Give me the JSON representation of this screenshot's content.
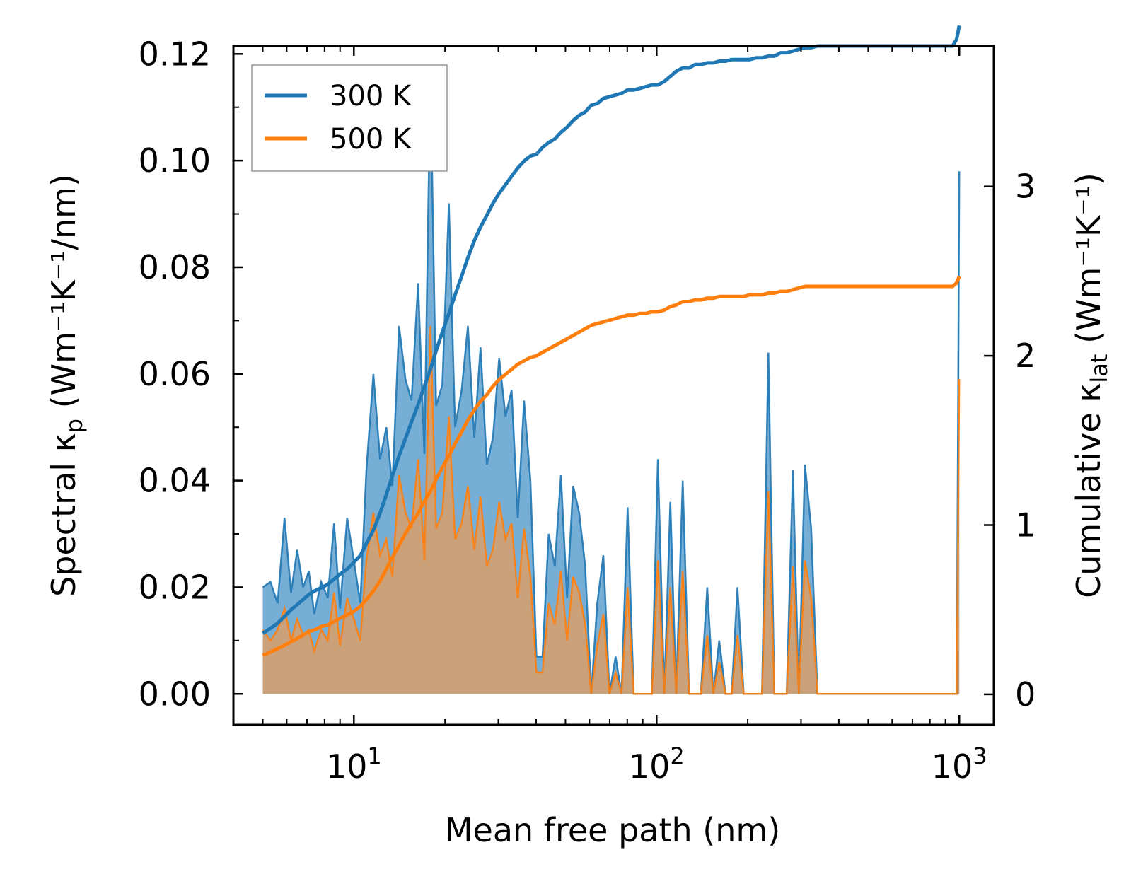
{
  "chart_data": {
    "type": "line",
    "title": "",
    "xlabel": "Mean free path (nm)",
    "ylabel_left": {
      "main": "Spectral κ",
      "sub": "p",
      "unit": "(Wm⁻¹K⁻¹/nm)"
    },
    "ylabel_right": {
      "main": "Cumulative κ",
      "sub": "lat",
      "unit": "(Wm⁻¹K⁻¹)"
    },
    "x_scale": "log",
    "xlim": [
      4.0,
      1300
    ],
    "ylim_left": [
      -0.0058,
      0.1215
    ],
    "ylim_right": [
      -0.18,
      3.83
    ],
    "x_ticks": [
      {
        "value": 10,
        "base": "10",
        "exp": "1"
      },
      {
        "value": 100,
        "base": "10",
        "exp": "2"
      },
      {
        "value": 1000,
        "base": "10",
        "exp": "3"
      }
    ],
    "y_ticks_left": [
      "0.00",
      "0.02",
      "0.04",
      "0.06",
      "0.08",
      "0.10",
      "0.12"
    ],
    "y_ticks_right": [
      "0",
      "1",
      "2",
      "3"
    ],
    "legend": {
      "position": "top-left",
      "entries": [
        "300 K",
        "500 K"
      ]
    },
    "colors": {
      "300K": "#1f77b4",
      "500K": "#ff7f0e",
      "fill300": "#5fa0cf",
      "fill500": "#d4a070",
      "legend_frame": "#999999"
    },
    "x": [
      5.0,
      5.3,
      5.6,
      5.9,
      6.2,
      6.5,
      6.8,
      7.1,
      7.4,
      7.8,
      8.2,
      8.6,
      9.0,
      9.5,
      10.0,
      10.5,
      11.0,
      11.6,
      12.2,
      12.8,
      13.4,
      14.1,
      14.8,
      15.5,
      16.3,
      17.1,
      17.9,
      18.7,
      19.6,
      20.6,
      21.6,
      22.7,
      23.8,
      25.0,
      26.2,
      27.5,
      28.8,
      30.2,
      31.7,
      33.2,
      34.8,
      36.5,
      38.3,
      40.1,
      42.0,
      44.0,
      46.1,
      48.3,
      50.6,
      53.0,
      55.5,
      58.1,
      60.8,
      63.7,
      66.7,
      69.9,
      73.2,
      76.6,
      80.2,
      84.0,
      88.0,
      92.1,
      96.5,
      101.0,
      106.0,
      111.0,
      116.0,
      122.0,
      128.0,
      134.0,
      140.0,
      147.0,
      154.0,
      161.0,
      169.0,
      177.0,
      185.0,
      194.0,
      203.0,
      213.0,
      223.0,
      234.0,
      245.0,
      257.0,
      269.0,
      282.0,
      295.0,
      309.0,
      324.0,
      340.0,
      400.0,
      500.0,
      600.0,
      700.0,
      800.0,
      900.0,
      950.0,
      980.0,
      1000.0
    ],
    "series": [
      {
        "name": "300 K",
        "spectral": [
          0.02,
          0.021,
          0.017,
          0.033,
          0.019,
          0.027,
          0.02,
          0.023,
          0.015,
          0.021,
          0.018,
          0.032,
          0.016,
          0.033,
          0.025,
          0.017,
          0.042,
          0.06,
          0.044,
          0.05,
          0.039,
          0.069,
          0.059,
          0.055,
          0.077,
          0.045,
          0.116,
          0.054,
          0.058,
          0.092,
          0.05,
          0.057,
          0.069,
          0.048,
          0.065,
          0.043,
          0.048,
          0.063,
          0.052,
          0.057,
          0.033,
          0.055,
          0.04,
          0.007,
          0.007,
          0.03,
          0.024,
          0.041,
          0.018,
          0.039,
          0.034,
          0.024,
          0.0,
          0.017,
          0.026,
          0.0,
          0.007,
          0.0,
          0.035,
          0.0,
          0.0,
          0.0,
          0.0,
          0.044,
          0.0,
          0.036,
          0.0,
          0.04,
          0.0,
          0.0,
          0.0,
          0.02,
          0.0,
          0.01,
          0.0,
          0.0,
          0.02,
          0.0,
          0.0,
          0.0,
          0.0,
          0.064,
          0.0,
          0.0,
          0.0,
          0.042,
          0.0,
          0.043,
          0.031,
          0.0,
          0.0,
          0.0,
          0.0,
          0.0,
          0.0,
          0.0,
          0.0,
          0.0,
          0.098
        ],
        "cumulative": [
          0.36,
          0.39,
          0.42,
          0.46,
          0.5,
          0.53,
          0.56,
          0.59,
          0.61,
          0.63,
          0.65,
          0.68,
          0.71,
          0.74,
          0.78,
          0.82,
          0.89,
          0.97,
          1.07,
          1.18,
          1.29,
          1.41,
          1.51,
          1.61,
          1.71,
          1.82,
          1.92,
          2.03,
          2.14,
          2.25,
          2.36,
          2.47,
          2.58,
          2.68,
          2.76,
          2.83,
          2.9,
          2.96,
          3.01,
          3.06,
          3.11,
          3.15,
          3.18,
          3.19,
          3.23,
          3.26,
          3.28,
          3.32,
          3.35,
          3.39,
          3.42,
          3.44,
          3.48,
          3.49,
          3.52,
          3.53,
          3.54,
          3.55,
          3.57,
          3.57,
          3.58,
          3.59,
          3.6,
          3.6,
          3.62,
          3.65,
          3.68,
          3.7,
          3.7,
          3.72,
          3.72,
          3.73,
          3.73,
          3.74,
          3.74,
          3.75,
          3.75,
          3.75,
          3.75,
          3.76,
          3.76,
          3.77,
          3.77,
          3.79,
          3.79,
          3.8,
          3.81,
          3.82,
          3.82,
          3.83,
          3.83,
          3.83,
          3.83,
          3.83,
          3.83,
          3.83,
          3.83,
          3.87,
          3.95
        ]
      },
      {
        "name": "500 K",
        "spectral": [
          0.012,
          0.01,
          0.012,
          0.016,
          0.01,
          0.014,
          0.011,
          0.012,
          0.008,
          0.012,
          0.01,
          0.019,
          0.009,
          0.018,
          0.014,
          0.01,
          0.025,
          0.034,
          0.026,
          0.029,
          0.022,
          0.041,
          0.034,
          0.031,
          0.044,
          0.025,
          0.069,
          0.031,
          0.034,
          0.052,
          0.029,
          0.032,
          0.039,
          0.027,
          0.037,
          0.024,
          0.027,
          0.036,
          0.029,
          0.032,
          0.018,
          0.031,
          0.022,
          0.004,
          0.004,
          0.017,
          0.013,
          0.023,
          0.01,
          0.022,
          0.019,
          0.013,
          0.0,
          0.009,
          0.015,
          0.0,
          0.004,
          0.0,
          0.02,
          0.0,
          0.0,
          0.0,
          0.0,
          0.025,
          0.0,
          0.02,
          0.0,
          0.023,
          0.0,
          0.0,
          0.0,
          0.011,
          0.0,
          0.006,
          0.0,
          0.0,
          0.011,
          0.0,
          0.0,
          0.0,
          0.0,
          0.038,
          0.0,
          0.0,
          0.0,
          0.024,
          0.0,
          0.025,
          0.018,
          0.0,
          0.0,
          0.0,
          0.0,
          0.0,
          0.0,
          0.0,
          0.0,
          0.0,
          0.059
        ],
        "cumulative": [
          0.23,
          0.25,
          0.27,
          0.29,
          0.31,
          0.33,
          0.35,
          0.37,
          0.38,
          0.4,
          0.41,
          0.43,
          0.45,
          0.47,
          0.49,
          0.52,
          0.56,
          0.61,
          0.67,
          0.74,
          0.81,
          0.88,
          0.95,
          1.01,
          1.07,
          1.14,
          1.2,
          1.27,
          1.34,
          1.41,
          1.48,
          1.55,
          1.62,
          1.68,
          1.73,
          1.77,
          1.82,
          1.86,
          1.89,
          1.92,
          1.95,
          1.97,
          1.99,
          2.0,
          2.02,
          2.04,
          2.06,
          2.08,
          2.1,
          2.12,
          2.14,
          2.16,
          2.18,
          2.19,
          2.2,
          2.21,
          2.22,
          2.23,
          2.24,
          2.24,
          2.25,
          2.25,
          2.26,
          2.26,
          2.27,
          2.29,
          2.3,
          2.32,
          2.32,
          2.33,
          2.33,
          2.34,
          2.34,
          2.35,
          2.35,
          2.35,
          2.35,
          2.35,
          2.36,
          2.36,
          2.36,
          2.37,
          2.37,
          2.38,
          2.38,
          2.39,
          2.4,
          2.41,
          2.41,
          2.41,
          2.41,
          2.41,
          2.41,
          2.41,
          2.41,
          2.41,
          2.41,
          2.43,
          2.47
        ]
      }
    ]
  }
}
